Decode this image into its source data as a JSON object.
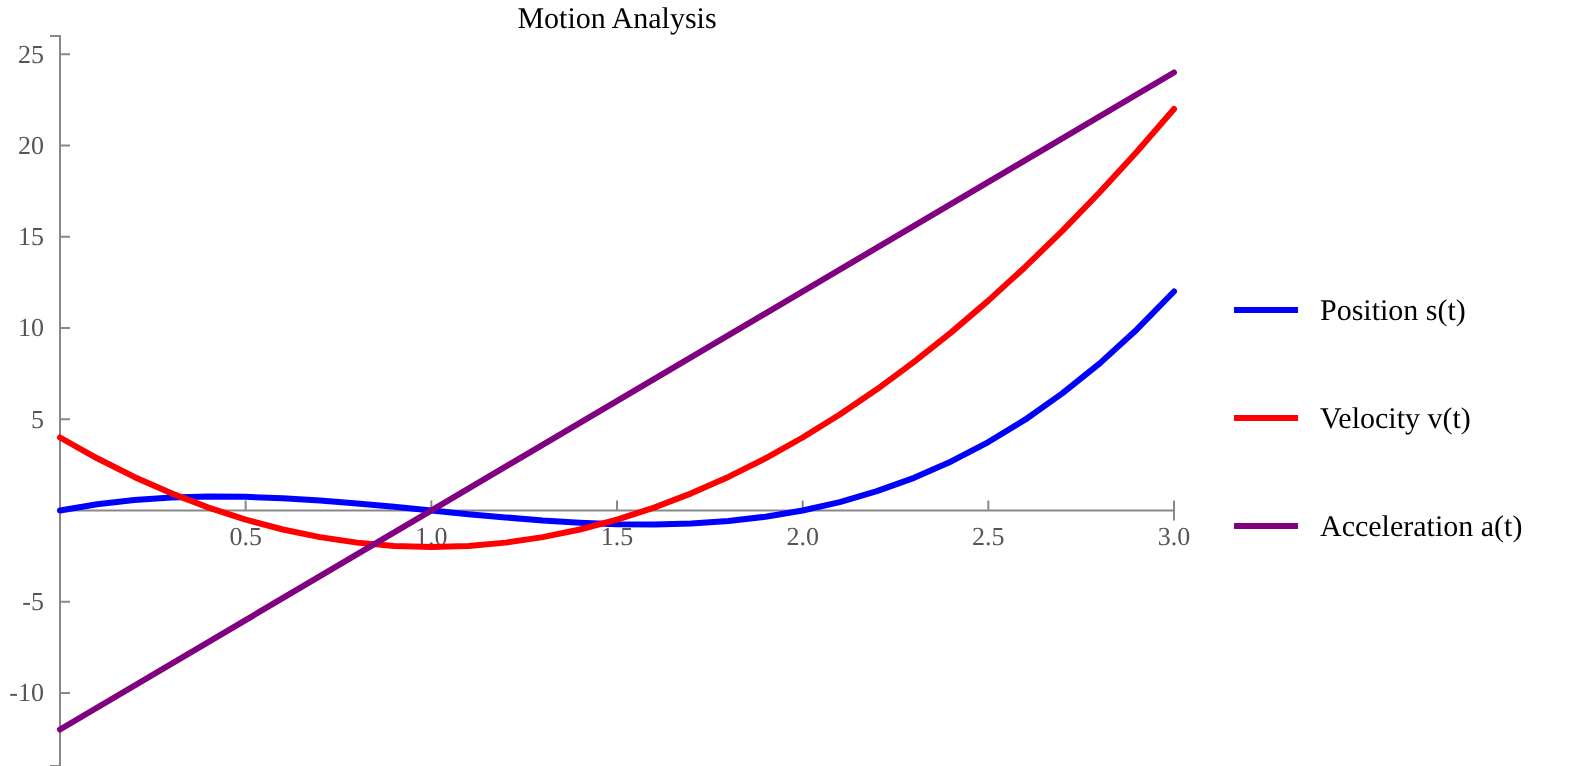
{
  "chart_data": {
    "type": "line",
    "title": "Motion Analysis",
    "legend": "right",
    "xlim": [
      0,
      3
    ],
    "ylim": [
      -14,
      26
    ],
    "xticks": [
      0.5,
      {
        "value": 1,
        "label": "1.0"
      },
      1.5,
      {
        "value": 2,
        "label": "2.0"
      },
      2.5,
      {
        "value": 3,
        "label": "3.0"
      }
    ],
    "yticks": [
      -10,
      -5,
      5,
      10,
      15,
      20,
      25
    ],
    "x": [
      0,
      0.1,
      0.2,
      0.3,
      0.4,
      0.5,
      0.6,
      0.7,
      0.8,
      0.9,
      1,
      1.1,
      1.2,
      1.3,
      1.4,
      1.5,
      1.6,
      1.7,
      1.8,
      1.9,
      2,
      2.1,
      2.2,
      2.3,
      2.4,
      2.5,
      2.6,
      2.7,
      2.8,
      2.9,
      3
    ],
    "series": [
      {
        "name": "Position s(t)",
        "color": "#0000ff",
        "values": [
          0,
          0.34,
          0.58,
          0.71,
          0.77,
          0.75,
          0.67,
          0.55,
          0.38,
          0.2,
          0,
          -0.2,
          -0.38,
          -0.55,
          -0.67,
          -0.75,
          -0.77,
          -0.71,
          -0.58,
          -0.34,
          0,
          0.46,
          1.06,
          1.79,
          2.69,
          3.75,
          4.99,
          6.43,
          8.06,
          9.92,
          12
        ]
      },
      {
        "name": "Velocity v(t)",
        "color": "#ff0000",
        "values": [
          4,
          2.86,
          1.84,
          0.94,
          0.16,
          -0.5,
          -1.04,
          -1.46,
          -1.76,
          -1.94,
          -2,
          -1.94,
          -1.76,
          -1.46,
          -1.04,
          -0.5,
          0.16,
          0.94,
          1.84,
          2.86,
          4,
          5.26,
          6.64,
          8.14,
          9.76,
          11.5,
          13.36,
          15.34,
          17.44,
          19.66,
          22
        ]
      },
      {
        "name": "Acceleration a(t)",
        "color": "#800080",
        "x": [
          0,
          3
        ],
        "values": [
          -12,
          24
        ]
      }
    ]
  }
}
